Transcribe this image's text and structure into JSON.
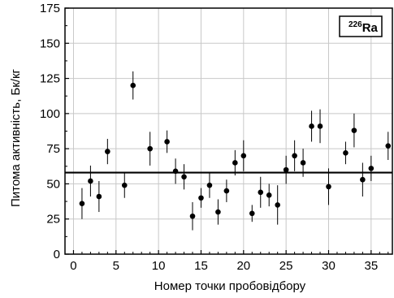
{
  "chart_data": {
    "type": "scatter",
    "xlabel": "Номер точки пробовідбору",
    "ylabel": "Питома активність, Бк/кг",
    "xlim": [
      -1,
      37.5
    ],
    "ylim": [
      0,
      175
    ],
    "x_ticks": [
      0,
      5,
      10,
      15,
      20,
      25,
      30,
      35
    ],
    "y_ticks": [
      0,
      25,
      50,
      75,
      100,
      125,
      150,
      175
    ],
    "grid": true,
    "legend": {
      "sup": "226",
      "text": "Ra",
      "position": "top-right"
    },
    "reference_line": {
      "y": 58
    },
    "series": [
      {
        "marker": "filled-circle",
        "x": [
          1,
          2,
          3,
          4,
          6,
          7,
          9,
          11,
          12,
          13,
          14,
          15,
          16,
          17,
          18,
          19,
          20,
          21,
          22,
          23,
          24,
          25,
          26,
          27,
          28,
          29,
          30,
          32,
          33,
          34,
          35,
          37
        ],
        "y": [
          36,
          52,
          41,
          73,
          49,
          120,
          75,
          80,
          59,
          55,
          27,
          40,
          49,
          30,
          45,
          65,
          70,
          29,
          44,
          42,
          35,
          60,
          70,
          65,
          91,
          91,
          48,
          72,
          88,
          53,
          61,
          77
        ],
        "err": [
          11,
          11,
          11,
          9,
          9,
          10,
          12,
          8,
          9,
          9,
          10,
          7,
          9,
          9,
          8,
          9,
          11,
          6,
          11,
          8,
          14,
          10,
          11,
          10,
          11,
          12,
          13,
          8,
          12,
          12,
          9,
          10
        ]
      }
    ]
  }
}
